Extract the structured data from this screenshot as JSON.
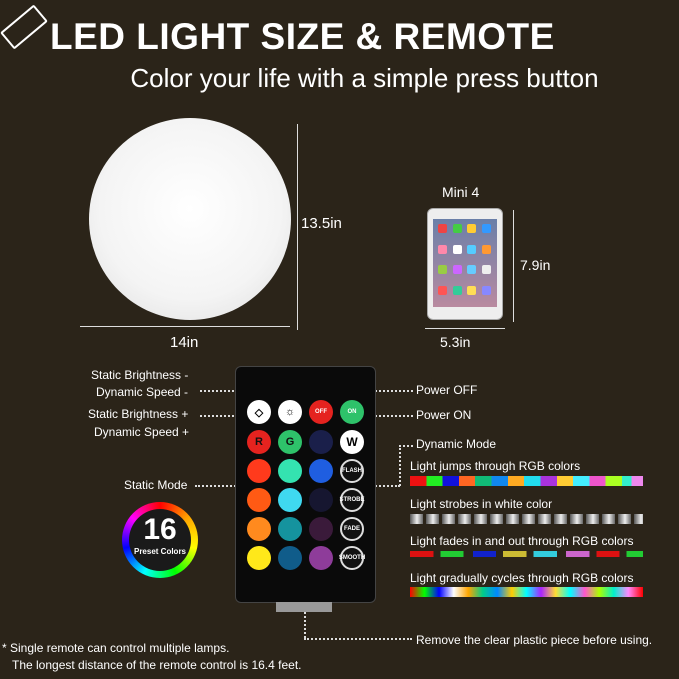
{
  "title": "LED LIGHT SIZE & REMOTE",
  "subtitle": "Color your life with a simple press button",
  "ball": {
    "height": "13.5in",
    "width": "14in"
  },
  "tablet": {
    "name": "Mini 4",
    "height": "7.9in",
    "width": "5.3in"
  },
  "remote_labels": {
    "brightness_minus": "Static Brightness -",
    "speed_minus": "Dynamic Speed -",
    "brightness_plus": "Static Brightness +",
    "speed_plus": "Dynamic Speed +",
    "static_mode": "Static Mode",
    "power_off": "Power OFF",
    "power_on": "Power ON",
    "dynamic_mode": "Dynamic Mode",
    "remove_piece": "Remove the clear plastic piece before using."
  },
  "buttons": {
    "off": "OFF",
    "on": "ON",
    "r": "R",
    "g": "G",
    "w": "W",
    "flash": "FLASH",
    "strobe": "STROBE",
    "fade": "FADE",
    "smooth": "SMOOTH"
  },
  "button_colors": [
    "#e5231f",
    "#2ec26a",
    "#1a1f4a",
    "#ff3a1c",
    "#34e3b0",
    "#1f5ee0",
    "#ff5a14",
    "#3fd9f0",
    "#161630",
    "#ff8a1e",
    "#15939e",
    "#3a1a3a",
    "#ffe81a",
    "#105c8a",
    "#8e3c9a"
  ],
  "modes": [
    {
      "text": "Light jumps through RGB colors"
    },
    {
      "text": "Light strobes in white color"
    },
    {
      "text": "Light fades in and out through RGB colors"
    },
    {
      "text": "Light  gradually cycles through RGB colors"
    }
  ],
  "preset": {
    "number": "16",
    "label": "Preset Colors"
  },
  "notes": [
    "* Single remote can control multiple lamps.",
    "The longest distance of the remote control is 16.4 feet."
  ]
}
